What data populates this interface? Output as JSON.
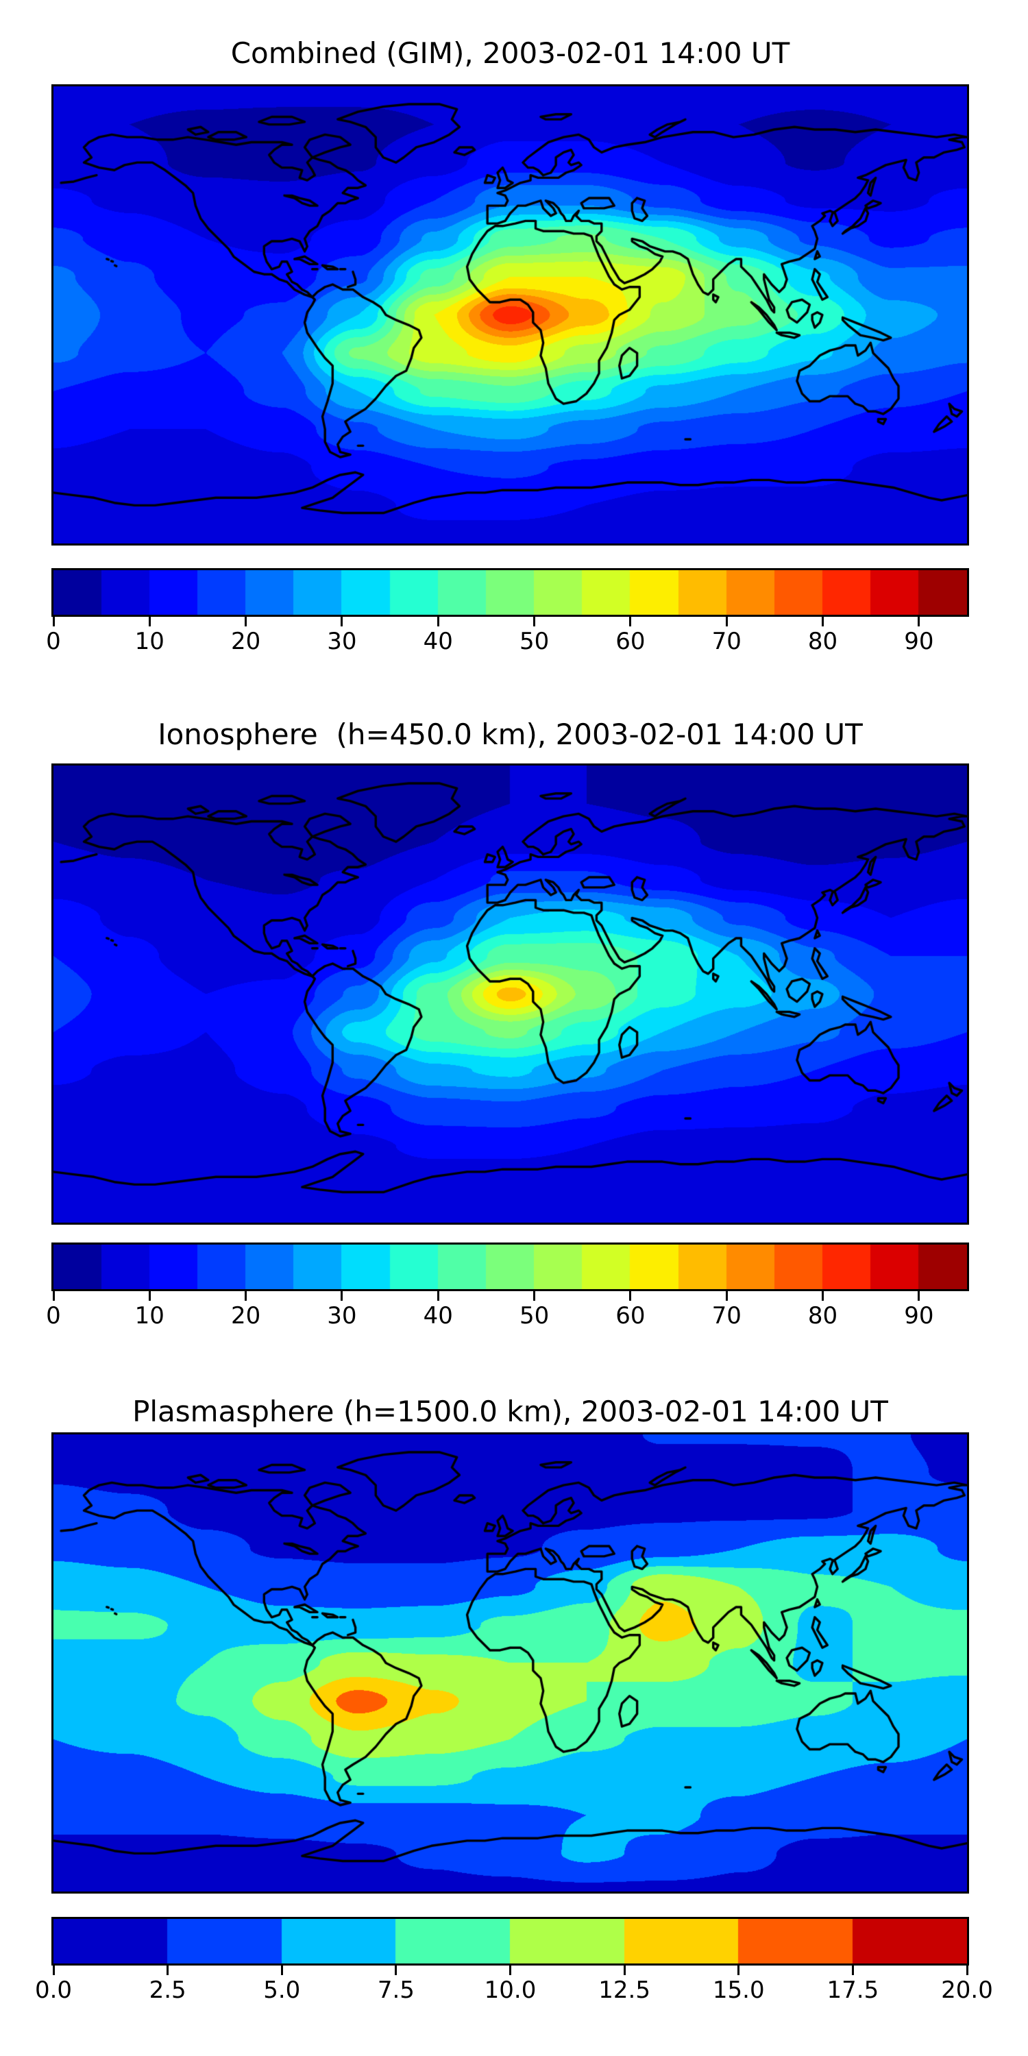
{
  "figure": {
    "background": "#ffffff",
    "panels": [
      {
        "id": "combined",
        "title": "Combined (GIM), 2003-02-01 14:00 UT"
      },
      {
        "id": "ionosphere",
        "title": "Ionosphere  (h=450.0 km), 2003-02-01 14:00 UT"
      },
      {
        "id": "plasmasphere",
        "title": "Plasmasphere (h=1500.0 km), 2003-02-01 14:00 UT"
      }
    ]
  },
  "chart_data": [
    {
      "type": "heatmap",
      "subtype": "filled-contour-world-map",
      "title": "Combined (GIM), 2003-02-01 14:00 UT",
      "projection": "equirectangular",
      "lon_range": [
        -180,
        180
      ],
      "lat_range": [
        -90,
        90
      ],
      "colormap": "jet",
      "levels_min": 0,
      "levels_max": 95,
      "levels_step": 5,
      "legend_position": "bottom",
      "colorbar_ticks": [
        {
          "label": "0",
          "value": 0
        },
        {
          "label": "10",
          "value": 10
        },
        {
          "label": "20",
          "value": 20
        },
        {
          "label": "30",
          "value": 30
        },
        {
          "label": "40",
          "value": 40
        },
        {
          "label": "50",
          "value": 50
        },
        {
          "label": "60",
          "value": 60
        },
        {
          "label": "70",
          "value": 70
        },
        {
          "label": "80",
          "value": 80
        },
        {
          "label": "90",
          "value": 90
        }
      ],
      "grid_lon": [
        -180,
        -150,
        -120,
        -90,
        -60,
        -30,
        0,
        30,
        60,
        90,
        120,
        150,
        180
      ],
      "grid_lat": [
        90,
        75,
        60,
        45,
        30,
        15,
        0,
        -15,
        -30,
        -45,
        -60,
        -75,
        -90
      ],
      "values": [
        [
          7,
          7,
          7,
          7,
          7,
          7,
          7,
          7,
          7,
          7,
          7,
          7,
          7
        ],
        [
          6,
          5,
          4,
          3.5,
          3.5,
          5,
          8,
          8,
          7,
          5,
          4,
          5,
          6
        ],
        [
          7,
          6,
          4,
          3.5,
          4.5,
          8,
          13,
          13,
          10,
          6,
          4.5,
          6,
          7
        ],
        [
          11,
          9,
          7,
          6.5,
          8,
          15,
          24,
          24,
          18,
          12,
          9,
          9,
          11
        ],
        [
          16,
          13,
          10,
          9,
          12,
          26,
          43,
          46,
          40,
          28,
          19,
          14,
          16
        ],
        [
          21,
          16,
          12,
          12,
          19,
          42,
          60,
          60,
          58,
          44,
          31,
          21,
          21
        ],
        [
          24,
          18,
          14,
          16,
          30,
          60,
          83,
          68,
          54,
          47,
          39,
          27,
          24
        ],
        [
          21,
          17,
          15,
          20,
          46,
          58,
          63,
          53,
          44,
          37,
          31,
          24,
          21
        ],
        [
          15,
          13,
          13,
          17,
          30,
          41,
          44,
          37,
          29,
          25,
          21,
          17,
          15
        ],
        [
          11,
          10,
          10,
          12,
          19,
          25,
          27,
          23,
          19,
          17,
          15,
          12,
          11
        ],
        [
          9,
          8,
          8,
          9,
          12,
          15,
          16,
          14,
          12,
          11,
          11,
          9,
          9
        ],
        [
          8,
          7,
          7,
          8,
          9,
          11,
          11,
          10,
          9,
          9,
          9,
          8,
          8
        ],
        [
          8,
          8,
          8,
          8,
          8,
          8,
          8,
          8,
          8,
          8,
          8,
          8,
          8
        ]
      ]
    },
    {
      "type": "heatmap",
      "subtype": "filled-contour-world-map",
      "title": "Ionosphere  (h=450.0 km), 2003-02-01 14:00 UT",
      "projection": "equirectangular",
      "lon_range": [
        -180,
        180
      ],
      "lat_range": [
        -90,
        90
      ],
      "colormap": "jet",
      "levels_min": 0,
      "levels_max": 95,
      "levels_step": 5,
      "legend_position": "bottom",
      "colorbar_ticks": [
        {
          "label": "0",
          "value": 0
        },
        {
          "label": "10",
          "value": 10
        },
        {
          "label": "20",
          "value": 20
        },
        {
          "label": "30",
          "value": 30
        },
        {
          "label": "40",
          "value": 40
        },
        {
          "label": "50",
          "value": 50
        },
        {
          "label": "60",
          "value": 60
        },
        {
          "label": "70",
          "value": 70
        },
        {
          "label": "80",
          "value": 80
        },
        {
          "label": "90",
          "value": 90
        }
      ],
      "grid_lon": [
        -180,
        -150,
        -120,
        -90,
        -60,
        -30,
        0,
        30,
        60,
        90,
        120,
        150,
        180
      ],
      "grid_lat": [
        90,
        75,
        60,
        45,
        30,
        15,
        0,
        -15,
        -30,
        -45,
        -60,
        -75,
        -90
      ],
      "values": [
        [
          5,
          5,
          5,
          5,
          5,
          5,
          5,
          5,
          5,
          5,
          5,
          5,
          5
        ],
        [
          4,
          3.5,
          3,
          2.5,
          2.5,
          3.5,
          5,
          5,
          4.5,
          3.5,
          3,
          3.5,
          4
        ],
        [
          5,
          4,
          3,
          2.5,
          3,
          5,
          8,
          8,
          6,
          4,
          3,
          4,
          5
        ],
        [
          8,
          6.5,
          5,
          4.5,
          5.5,
          10,
          16,
          16,
          12,
          8,
          6,
          6.5,
          8
        ],
        [
          12,
          9,
          7,
          6,
          8,
          18,
          30,
          32,
          28,
          19,
          13,
          10,
          12
        ],
        [
          15,
          11,
          8,
          8,
          13,
          29,
          43,
          43,
          39,
          30,
          21,
          15,
          15
        ],
        [
          17,
          13,
          10,
          11,
          21,
          43,
          67,
          49,
          37,
          32,
          27,
          19,
          17
        ],
        [
          15,
          12,
          10,
          14,
          32,
          42,
          46,
          38,
          30,
          25,
          21,
          17,
          15
        ],
        [
          11,
          9,
          9,
          12,
          21,
          29,
          31,
          26,
          20,
          17,
          15,
          12,
          11
        ],
        [
          8,
          7,
          7,
          9,
          13,
          18,
          19,
          16,
          13,
          12,
          11,
          9,
          8
        ],
        [
          6,
          6,
          6,
          7,
          9,
          11,
          11,
          10,
          8,
          8,
          8,
          6,
          6
        ],
        [
          5,
          5,
          5,
          5,
          6,
          7,
          7,
          7,
          6,
          6,
          6,
          5,
          5
        ],
        [
          5,
          5,
          5,
          5,
          5,
          5,
          5,
          5,
          5,
          5,
          5,
          5,
          5
        ]
      ]
    },
    {
      "type": "heatmap",
      "subtype": "filled-contour-world-map",
      "title": "Plasmasphere (h=1500.0 km), 2003-02-01 14:00 UT",
      "projection": "equirectangular",
      "lon_range": [
        -180,
        180
      ],
      "lat_range": [
        -90,
        90
      ],
      "colormap": "jet",
      "levels_min": 0,
      "levels_max": 20,
      "levels_step": 2.5,
      "legend_position": "bottom",
      "colorbar_ticks": [
        {
          "label": "0.0",
          "value": 0
        },
        {
          "label": "2.5",
          "value": 2.5
        },
        {
          "label": "5.0",
          "value": 5
        },
        {
          "label": "7.5",
          "value": 7.5
        },
        {
          "label": "10.0",
          "value": 10
        },
        {
          "label": "12.5",
          "value": 12.5
        },
        {
          "label": "15.0",
          "value": 15
        },
        {
          "label": "17.5",
          "value": 17.5
        },
        {
          "label": "20.0",
          "value": 20
        }
      ],
      "grid_lon": [
        -180,
        -150,
        -120,
        -90,
        -60,
        -30,
        0,
        30,
        60,
        90,
        120,
        150,
        180
      ],
      "grid_lat": [
        90,
        75,
        60,
        45,
        30,
        15,
        0,
        -15,
        -30,
        -45,
        -60,
        -75,
        -90
      ],
      "values": [
        [
          2,
          2,
          2,
          2,
          2,
          2,
          2,
          2,
          2.6,
          2.6,
          2.6,
          2.6,
          2
        ],
        [
          2.2,
          1.8,
          1.6,
          1.5,
          1.5,
          1.8,
          2,
          2,
          2,
          2,
          2.2,
          2.8,
          2.2
        ],
        [
          3.5,
          3,
          2,
          1.8,
          1.8,
          1.8,
          2,
          2,
          2,
          2,
          2,
          3,
          3.5
        ],
        [
          4.5,
          4,
          3,
          2.2,
          2,
          2,
          2.2,
          3,
          4,
          5,
          6,
          6,
          4.5
        ],
        [
          6.5,
          6,
          5,
          4,
          3.5,
          3.5,
          4.5,
          6.5,
          12,
          10,
          8,
          7.5,
          6.5
        ],
        [
          8,
          8,
          7,
          6,
          6,
          6.5,
          8,
          9,
          13.5,
          11,
          7,
          8,
          8
        ],
        [
          6.5,
          6.5,
          7.5,
          9,
          11,
          10.5,
          10,
          10,
          11,
          9.5,
          7,
          8,
          8
        ],
        [
          6,
          6.5,
          8,
          11,
          16,
          13,
          11,
          10,
          9,
          9,
          8,
          7,
          6
        ],
        [
          5,
          5.5,
          6.5,
          9,
          12,
          11,
          10,
          8,
          7,
          7,
          6.5,
          6,
          5
        ],
        [
          4,
          4,
          5,
          6,
          8,
          8,
          7,
          6,
          5.5,
          5.5,
          5,
          4.5,
          4
        ],
        [
          3,
          3,
          3,
          3.5,
          4,
          4,
          4.5,
          5,
          5.5,
          4.5,
          3.5,
          3,
          3
        ],
        [
          2,
          2,
          2,
          2,
          2.2,
          2.8,
          3.5,
          5.5,
          4.5,
          3,
          2,
          2,
          2
        ],
        [
          2,
          2,
          2,
          2,
          2,
          2,
          2,
          2,
          2,
          2,
          2,
          2,
          2
        ]
      ]
    }
  ]
}
